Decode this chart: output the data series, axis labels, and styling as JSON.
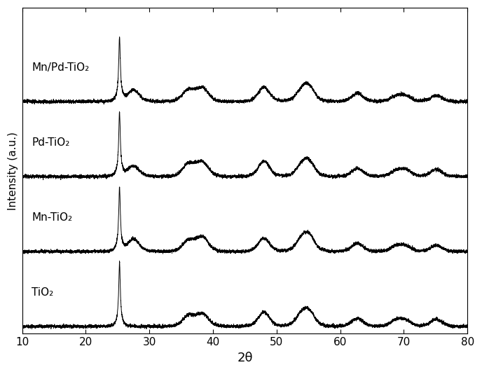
{
  "xlabel": "2θ",
  "ylabel": "Intensity (a.u.)",
  "xlim": [
    10,
    80
  ],
  "ylim": [
    -0.08,
    4.05
  ],
  "x_ticks": [
    10,
    20,
    30,
    40,
    50,
    60,
    70,
    80
  ],
  "labels": [
    "TiO₂",
    "Mn-TiO₂",
    "Pd-TiO₂",
    "Mn/Pd-TiO₂"
  ],
  "offsets": [
    0.0,
    0.95,
    1.9,
    2.85
  ],
  "peak_positions": [
    25.3,
    27.5,
    36.1,
    37.9,
    38.6,
    48.0,
    53.9,
    55.1,
    62.7,
    68.8,
    70.3,
    75.1
  ],
  "peak_heights_tio2": [
    1.0,
    0.0,
    0.1,
    0.06,
    0.07,
    0.14,
    0.1,
    0.13,
    0.08,
    0.06,
    0.05,
    0.07
  ],
  "peak_heights_mn": [
    1.0,
    0.12,
    0.1,
    0.07,
    0.08,
    0.13,
    0.1,
    0.14,
    0.08,
    0.05,
    0.05,
    0.06
  ],
  "peak_heights_pd": [
    1.0,
    0.1,
    0.12,
    0.07,
    0.08,
    0.15,
    0.09,
    0.13,
    0.08,
    0.05,
    0.06,
    0.07
  ],
  "peak_heights_mnpd": [
    1.0,
    0.11,
    0.11,
    0.06,
    0.08,
    0.14,
    0.09,
    0.13,
    0.08,
    0.05,
    0.05,
    0.06
  ],
  "main_peak_scale": 0.75,
  "noise_amplitude": 0.008,
  "line_color": "#000000",
  "background_color": "#ffffff",
  "label_fontsize": 11,
  "tick_fontsize": 11,
  "xlabel_fontsize": 13,
  "ylabel_fontsize": 11,
  "figsize": [
    6.88,
    5.31
  ],
  "dpi": 100
}
